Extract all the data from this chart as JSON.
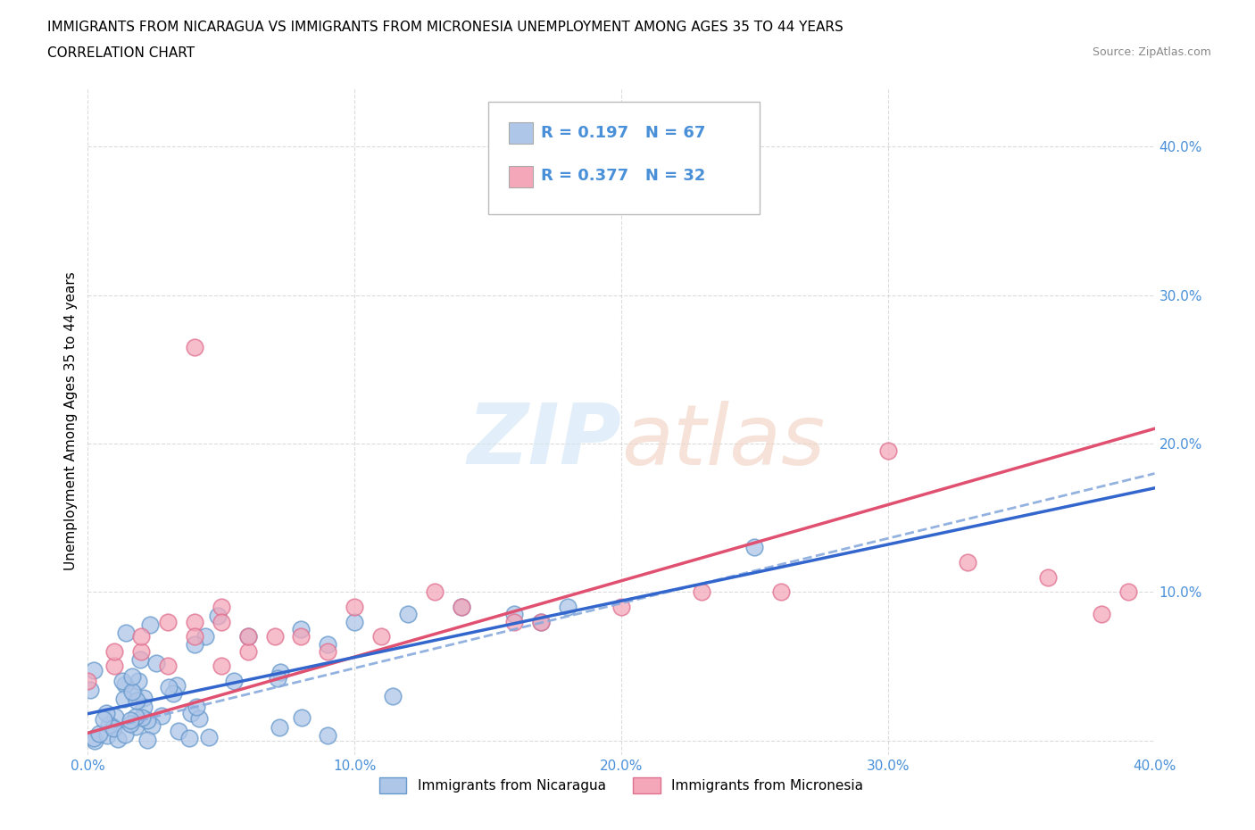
{
  "title_line1": "IMMIGRANTS FROM NICARAGUA VS IMMIGRANTS FROM MICRONESIA UNEMPLOYMENT AMONG AGES 35 TO 44 YEARS",
  "title_line2": "CORRELATION CHART",
  "source_text": "Source: ZipAtlas.com",
  "ylabel": "Unemployment Among Ages 35 to 44 years",
  "xlim": [
    0.0,
    0.4
  ],
  "ylim": [
    -0.01,
    0.44
  ],
  "xticks": [
    0.0,
    0.1,
    0.2,
    0.3,
    0.4
  ],
  "yticks": [
    0.0,
    0.1,
    0.2,
    0.3,
    0.4
  ],
  "xtick_labels": [
    "0.0%",
    "10.0%",
    "20.0%",
    "30.0%",
    "40.0%"
  ],
  "ytick_labels_right": [
    "",
    "10.0%",
    "20.0%",
    "30.0%",
    "40.0%"
  ],
  "watermark": "ZIPatlas",
  "nicaragua_face_color": "#aec6e8",
  "nicaragua_edge_color": "#6699cc",
  "micronesia_face_color": "#f4a7b9",
  "micronesia_edge_color": "#e07090",
  "nicaragua_line_color": "#3366cc",
  "nicaragua_dash_color": "#88aadd",
  "micronesia_line_color": "#e05070",
  "legend_R_nicaragua": "0.197",
  "legend_N_nicaragua": "67",
  "legend_R_micronesia": "0.377",
  "legend_N_micronesia": "32",
  "grid_color": "#cccccc",
  "background_color": "#ffffff",
  "title_fontsize": 11,
  "axis_label_fontsize": 11,
  "tick_fontsize": 11,
  "legend_fontsize": 12,
  "tick_color": "#4a90d9"
}
